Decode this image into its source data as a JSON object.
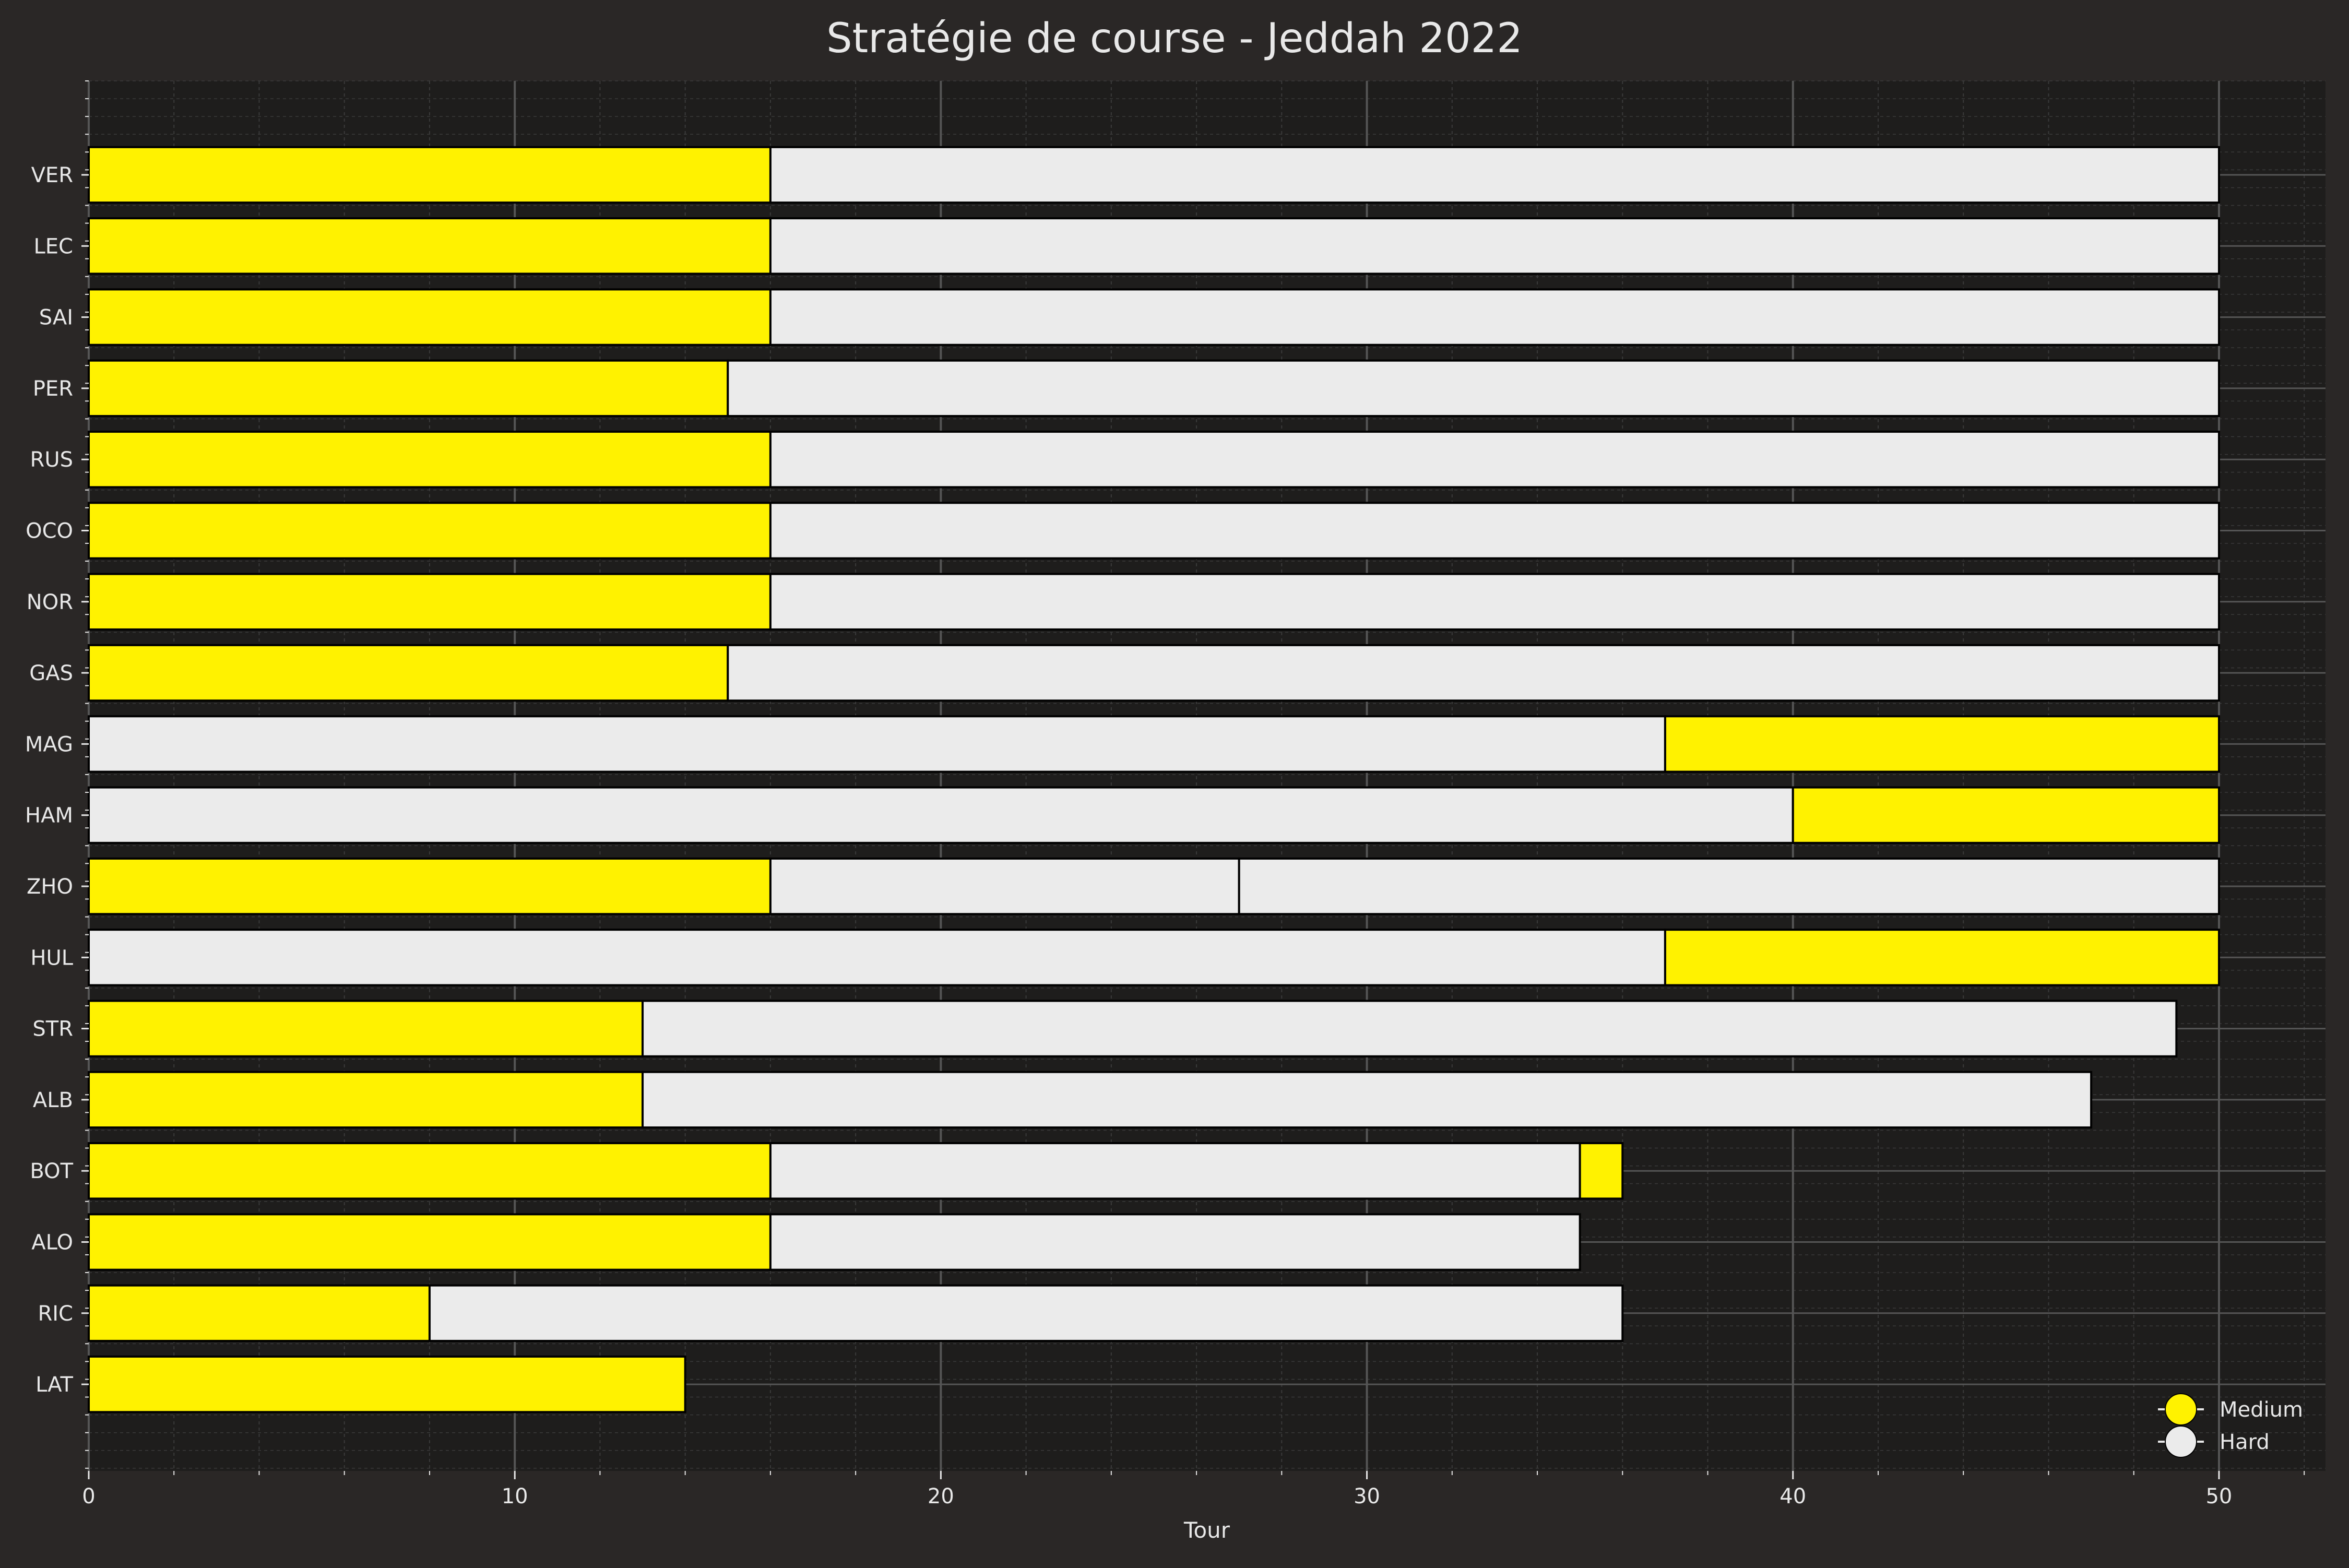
{
  "colors": {
    "background": "#2a2726",
    "plot_background": "#1e1d1c",
    "major_grid": "#555555",
    "minor_grid": "#3a3a3a",
    "text": "#e8e8e8",
    "bar_edge": "#000000",
    "Medium": "#fff200",
    "Hard": "#ebebeb"
  },
  "chart_data": {
    "type": "bar",
    "orientation": "horizontal",
    "stacked": true,
    "title": "Stratégie de course - Jeddah 2022",
    "xlabel": "Tour",
    "ylabel": "",
    "xlim": [
      0,
      52.5
    ],
    "xticks": [
      0,
      10,
      20,
      30,
      40,
      50
    ],
    "grid": true,
    "legend": {
      "placement": "bottom-right",
      "entries": [
        "Medium",
        "Hard"
      ]
    },
    "drivers": [
      {
        "driver": "VER",
        "stints": [
          {
            "compound": "Medium",
            "start": 0,
            "end": 16
          },
          {
            "compound": "Hard",
            "start": 16,
            "end": 50
          }
        ]
      },
      {
        "driver": "LEC",
        "stints": [
          {
            "compound": "Medium",
            "start": 0,
            "end": 16
          },
          {
            "compound": "Hard",
            "start": 16,
            "end": 50
          }
        ]
      },
      {
        "driver": "SAI",
        "stints": [
          {
            "compound": "Medium",
            "start": 0,
            "end": 16
          },
          {
            "compound": "Hard",
            "start": 16,
            "end": 50
          }
        ]
      },
      {
        "driver": "PER",
        "stints": [
          {
            "compound": "Medium",
            "start": 0,
            "end": 15
          },
          {
            "compound": "Hard",
            "start": 15,
            "end": 50
          }
        ]
      },
      {
        "driver": "RUS",
        "stints": [
          {
            "compound": "Medium",
            "start": 0,
            "end": 16
          },
          {
            "compound": "Hard",
            "start": 16,
            "end": 50
          }
        ]
      },
      {
        "driver": "OCO",
        "stints": [
          {
            "compound": "Medium",
            "start": 0,
            "end": 16
          },
          {
            "compound": "Hard",
            "start": 16,
            "end": 50
          }
        ]
      },
      {
        "driver": "NOR",
        "stints": [
          {
            "compound": "Medium",
            "start": 0,
            "end": 16
          },
          {
            "compound": "Hard",
            "start": 16,
            "end": 50
          }
        ]
      },
      {
        "driver": "GAS",
        "stints": [
          {
            "compound": "Medium",
            "start": 0,
            "end": 15
          },
          {
            "compound": "Hard",
            "start": 15,
            "end": 50
          }
        ]
      },
      {
        "driver": "MAG",
        "stints": [
          {
            "compound": "Hard",
            "start": 0,
            "end": 37
          },
          {
            "compound": "Medium",
            "start": 37,
            "end": 50
          }
        ]
      },
      {
        "driver": "HAM",
        "stints": [
          {
            "compound": "Hard",
            "start": 0,
            "end": 40
          },
          {
            "compound": "Medium",
            "start": 40,
            "end": 50
          }
        ]
      },
      {
        "driver": "ZHO",
        "stints": [
          {
            "compound": "Medium",
            "start": 0,
            "end": 16
          },
          {
            "compound": "Hard",
            "start": 16,
            "end": 27
          },
          {
            "compound": "Hard",
            "start": 27,
            "end": 50
          }
        ]
      },
      {
        "driver": "HUL",
        "stints": [
          {
            "compound": "Hard",
            "start": 0,
            "end": 37
          },
          {
            "compound": "Medium",
            "start": 37,
            "end": 50
          }
        ]
      },
      {
        "driver": "STR",
        "stints": [
          {
            "compound": "Medium",
            "start": 0,
            "end": 13
          },
          {
            "compound": "Hard",
            "start": 13,
            "end": 49
          }
        ]
      },
      {
        "driver": "ALB",
        "stints": [
          {
            "compound": "Medium",
            "start": 0,
            "end": 13
          },
          {
            "compound": "Hard",
            "start": 13,
            "end": 47
          }
        ]
      },
      {
        "driver": "BOT",
        "stints": [
          {
            "compound": "Medium",
            "start": 0,
            "end": 16
          },
          {
            "compound": "Hard",
            "start": 16,
            "end": 35
          },
          {
            "compound": "Medium",
            "start": 35,
            "end": 36
          }
        ]
      },
      {
        "driver": "ALO",
        "stints": [
          {
            "compound": "Medium",
            "start": 0,
            "end": 16
          },
          {
            "compound": "Hard",
            "start": 16,
            "end": 35
          }
        ]
      },
      {
        "driver": "RIC",
        "stints": [
          {
            "compound": "Medium",
            "start": 0,
            "end": 8
          },
          {
            "compound": "Hard",
            "start": 8,
            "end": 36
          }
        ]
      },
      {
        "driver": "LAT",
        "stints": [
          {
            "compound": "Medium",
            "start": 0,
            "end": 14
          }
        ]
      }
    ]
  }
}
